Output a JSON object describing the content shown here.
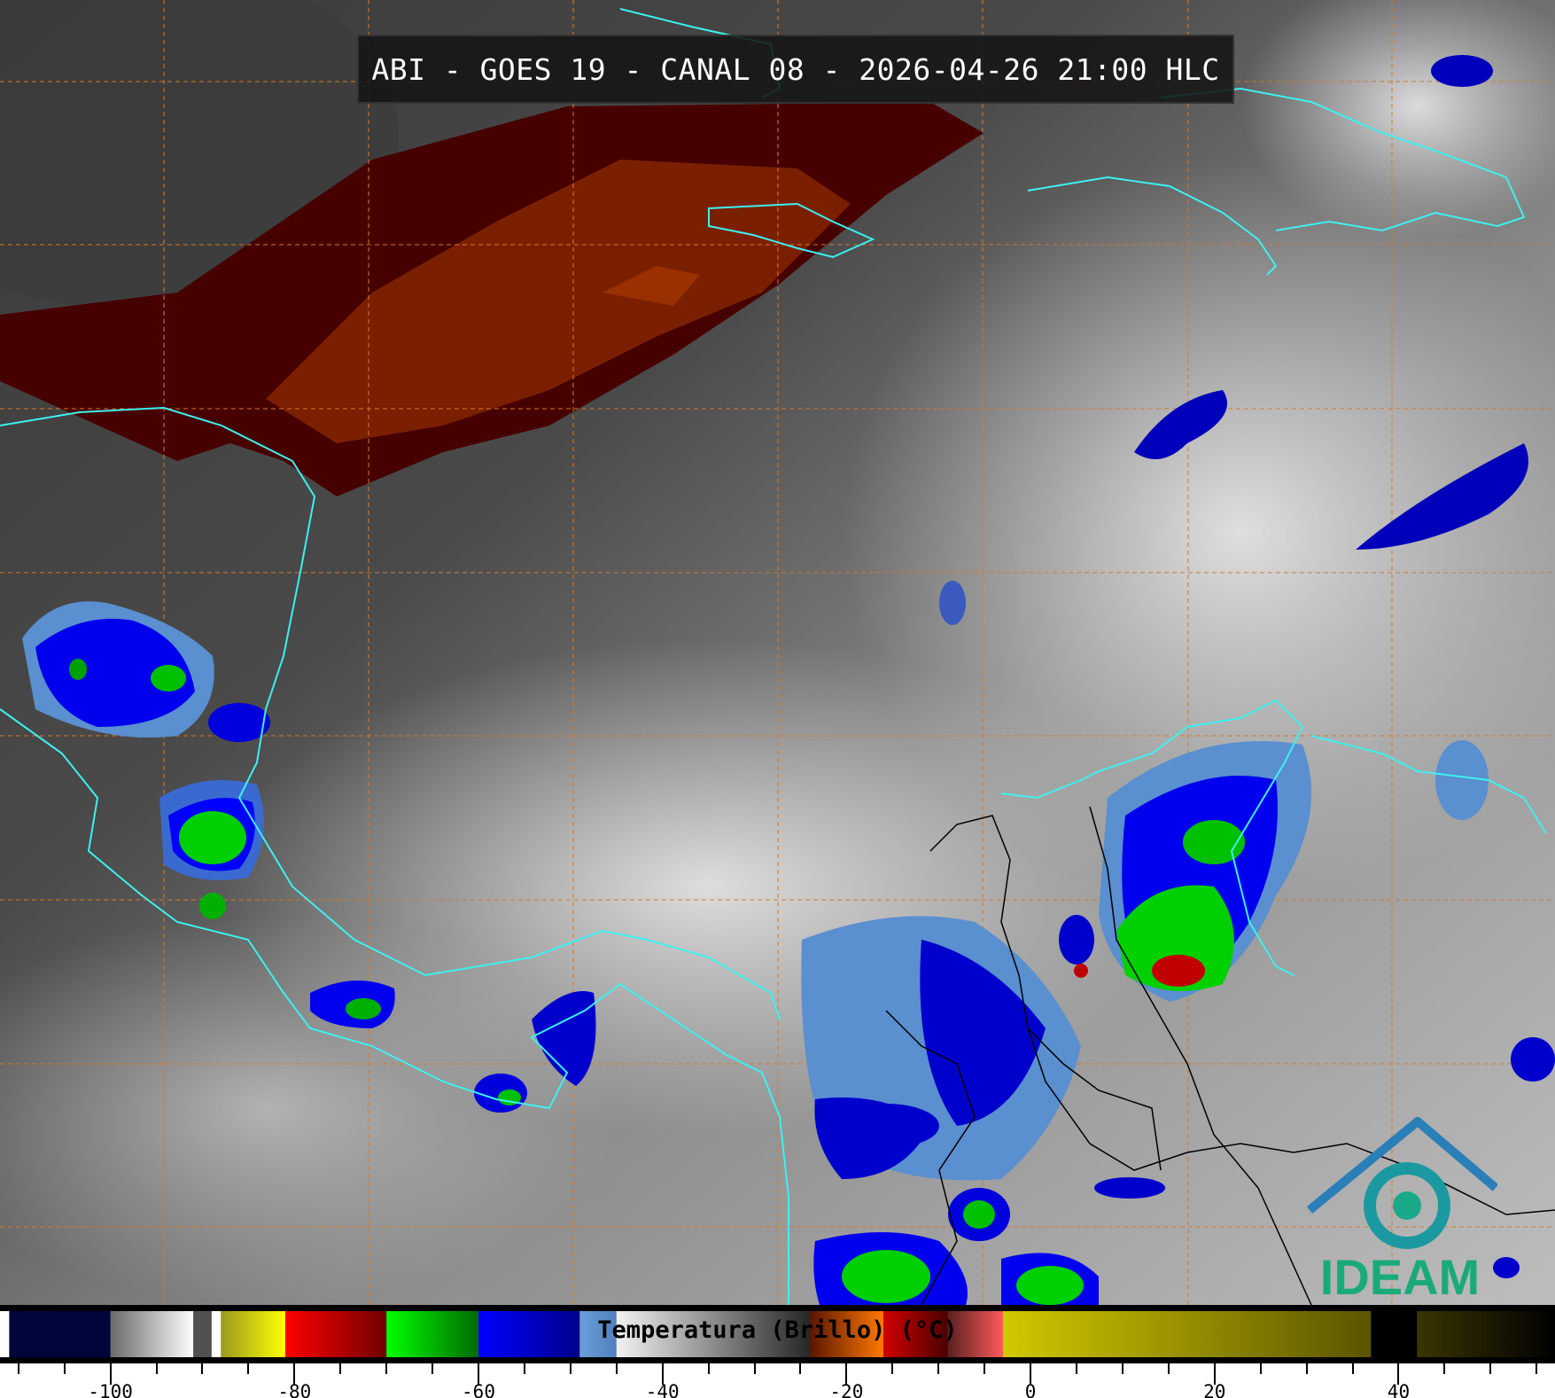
{
  "title": "ABI - GOES 19 - CANAL 08 - 2026-04-26 21:00 HLC",
  "logo_text": "IDEAM",
  "colorbar": {
    "label": "Temperatura (Brillo) (°C)",
    "units": "°C",
    "range": [
      -112,
      57
    ],
    "major_ticks": [
      -100,
      -80,
      -60,
      -40,
      -20,
      0,
      20,
      40
    ],
    "minor_tick_step": 5,
    "segments": [
      {
        "from": -112,
        "to": -111,
        "colors": [
          "#ffffff",
          "#ffffff"
        ]
      },
      {
        "from": -111,
        "to": -100,
        "colors": [
          "#00063a",
          "#00063a"
        ]
      },
      {
        "from": -100,
        "to": -91,
        "colors": [
          "#6a6a6a",
          "#ffffff"
        ]
      },
      {
        "from": -91,
        "to": -89,
        "colors": [
          "#505050",
          "#505050"
        ]
      },
      {
        "from": -89,
        "to": -88,
        "colors": [
          "#ffffff",
          "#ffffff"
        ]
      },
      {
        "from": -88,
        "to": -81,
        "colors": [
          "#9a9a20",
          "#ffff00"
        ]
      },
      {
        "from": -81,
        "to": -70,
        "colors": [
          "#ff0000",
          "#700000"
        ]
      },
      {
        "from": -70,
        "to": -60,
        "colors": [
          "#00ff00",
          "#006a00"
        ]
      },
      {
        "from": -60,
        "to": -49,
        "colors": [
          "#0000ff",
          "#00008a"
        ]
      },
      {
        "from": -49,
        "to": -45,
        "colors": [
          "#6a9fd6",
          "#5080c0"
        ]
      },
      {
        "from": -45,
        "to": -24,
        "colors": [
          "#f2f2f2",
          "#262626"
        ]
      },
      {
        "from": -24,
        "to": -16,
        "colors": [
          "#5a1500",
          "#ff7a00"
        ]
      },
      {
        "from": -16,
        "to": -9,
        "colors": [
          "#d00000",
          "#4a0000"
        ]
      },
      {
        "from": -9,
        "to": -3,
        "colors": [
          "#5a2020",
          "#ff5a5a"
        ]
      },
      {
        "from": -3,
        "to": 37,
        "colors": [
          "#d2c800",
          "#5a5500"
        ]
      },
      {
        "from": 37,
        "to": 42,
        "colors": [
          "#000000",
          "#000000"
        ]
      },
      {
        "from": 42,
        "to": 57,
        "colors": [
          "#3a3500",
          "#000000"
        ]
      }
    ]
  },
  "colors": {
    "coastline": "#3ef0f0",
    "borders": "#000000",
    "grid": "#d8782a",
    "logo_blue": "#2a7fb8",
    "logo_green": "#1aaa7a"
  }
}
